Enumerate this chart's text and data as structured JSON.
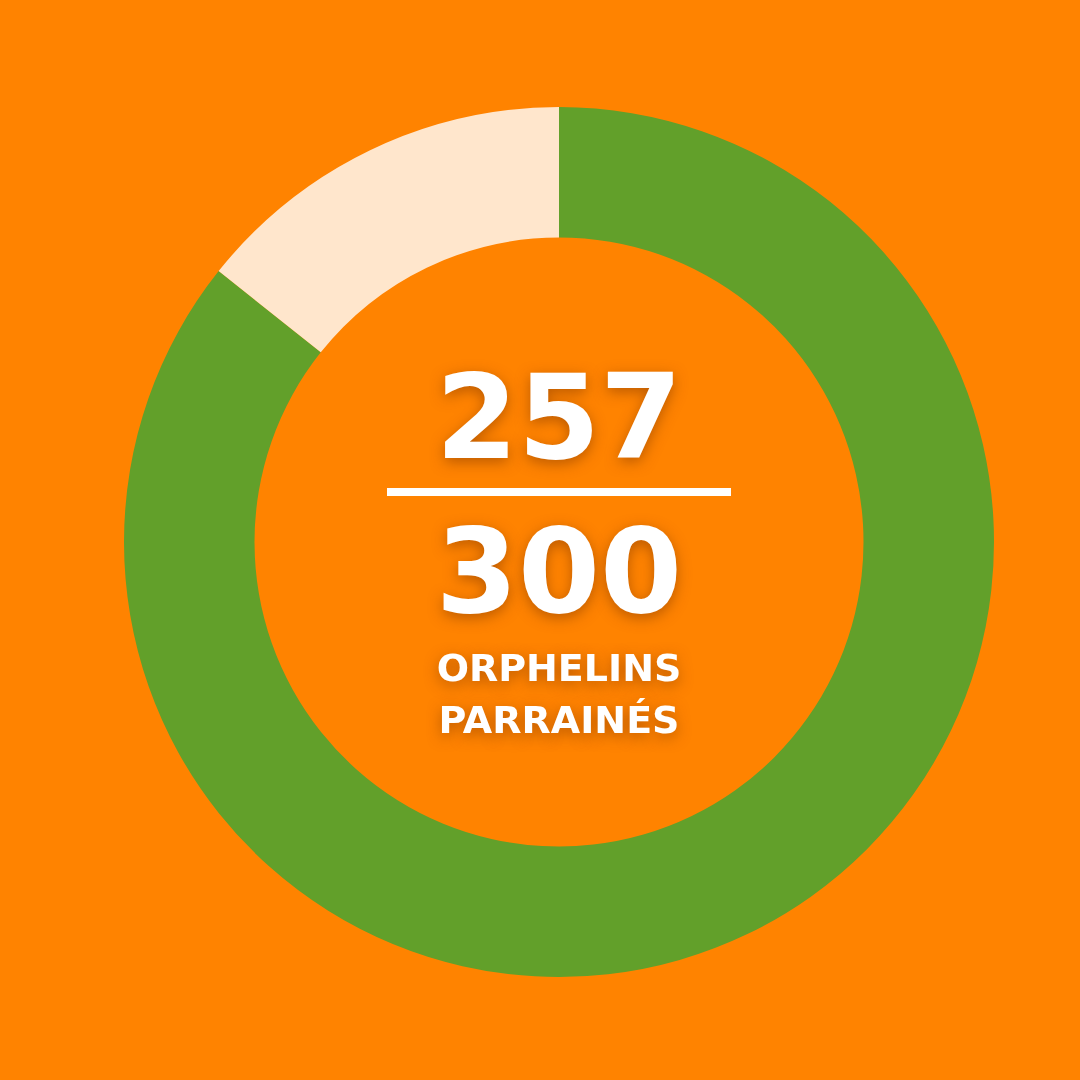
{
  "chart_data": {
    "type": "donut",
    "categories": [
      null,
      null
    ],
    "values": [
      85.7,
      14.3
    ],
    "colors": [
      "#62a02a",
      "#ffe6cc"
    ],
    "annotations": [
      "257",
      "300",
      "ORPHELINS PARRAINÉS"
    ]
  }
}
